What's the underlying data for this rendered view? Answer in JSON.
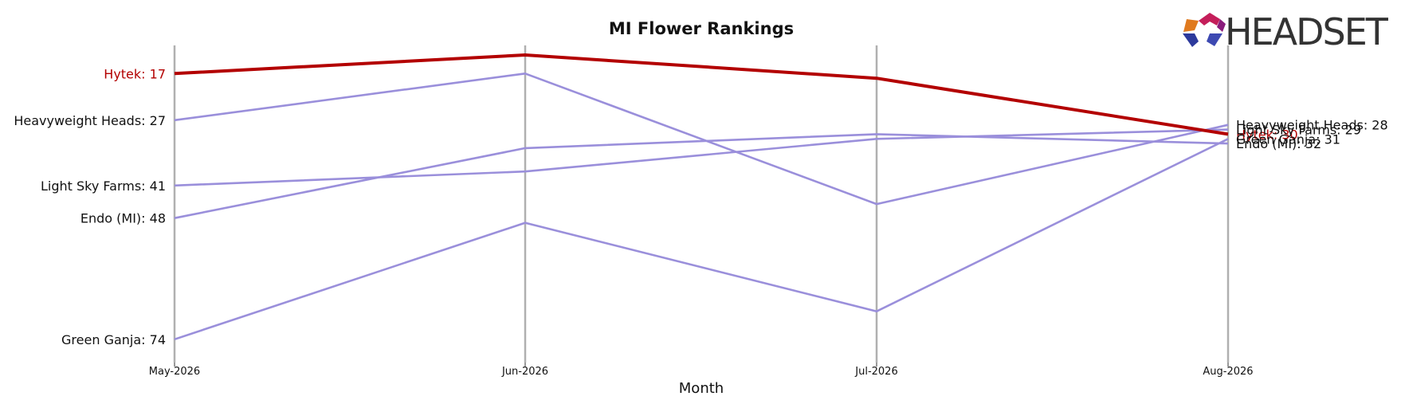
{
  "brand": {
    "name": "HEADSET"
  },
  "chart_data": {
    "type": "line",
    "title": "MI Flower Rankings",
    "xlabel": "Month",
    "ylabel": "",
    "x": [
      "May-2026",
      "Jun-2026",
      "Jul-2026",
      "Aug-2026"
    ],
    "y_inverted": true,
    "grid": "vertical lines at each month",
    "highlight_color": "#b30000",
    "other_color": "#9a8fdb",
    "series": [
      {
        "name": "Hytek",
        "values": [
          17,
          13,
          18,
          30
        ],
        "highlight": true
      },
      {
        "name": "Heavyweight Heads",
        "values": [
          27,
          17,
          45,
          28
        ],
        "highlight": false
      },
      {
        "name": "Light Sky Farms",
        "values": [
          41,
          38,
          31,
          29
        ],
        "highlight": false
      },
      {
        "name": "Endo (MI)",
        "values": [
          48,
          33,
          30,
          32
        ],
        "highlight": false
      },
      {
        "name": "Green Ganja",
        "values": [
          74,
          49,
          68,
          31
        ],
        "highlight": false
      }
    ]
  }
}
